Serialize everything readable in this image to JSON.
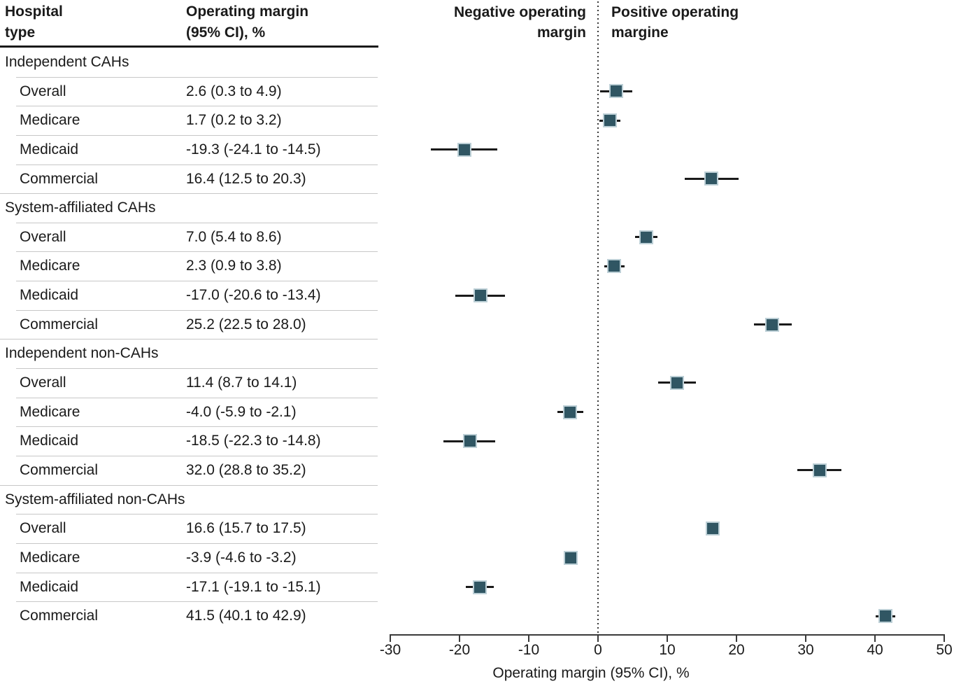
{
  "table": {
    "header": {
      "col1": "Hospital\ntype",
      "col2": "Operating margin\n(95% CI), %"
    },
    "groups": [
      {
        "label": "Independent CAHs",
        "rows": [
          {
            "label": "Overall",
            "value": "2.6 (0.3 to 4.9)"
          },
          {
            "label": "Medicare",
            "value": "1.7 (0.2 to 3.2)"
          },
          {
            "label": "Medicaid",
            "value": "-19.3 (-24.1 to -14.5)"
          },
          {
            "label": "Commercial",
            "value": "16.4 (12.5 to 20.3)"
          }
        ]
      },
      {
        "label": "System-affiliated CAHs",
        "rows": [
          {
            "label": "Overall",
            "value": "7.0 (5.4 to 8.6)"
          },
          {
            "label": "Medicare",
            "value": "2.3 (0.9 to 3.8)"
          },
          {
            "label": "Medicaid",
            "value": "-17.0 (-20.6 to -13.4)"
          },
          {
            "label": "Commercial",
            "value": "25.2 (22.5 to 28.0)"
          }
        ]
      },
      {
        "label": "Independent non-CAHs",
        "rows": [
          {
            "label": "Overall",
            "value": "11.4 (8.7 to 14.1)"
          },
          {
            "label": "Medicare",
            "value": "-4.0 (-5.9 to -2.1)"
          },
          {
            "label": "Medicaid",
            "value": "-18.5 (-22.3 to -14.8)"
          },
          {
            "label": "Commercial",
            "value": "32.0 (28.8 to 35.2)"
          }
        ]
      },
      {
        "label": "System-affiliated non-CAHs",
        "rows": [
          {
            "label": "Overall",
            "value": "16.6 (15.7 to 17.5)"
          },
          {
            "label": "Medicare",
            "value": "-3.9 (-4.6 to -3.2)"
          },
          {
            "label": "Medicaid",
            "value": "-17.1 (-19.1 to -15.1)"
          },
          {
            "label": "Commercial",
            "value": "41.5 (40.1 to 42.9)"
          }
        ]
      }
    ]
  },
  "chart_data": {
    "type": "scatter",
    "subtype": "forest-plot",
    "title": "",
    "xlabel": "Operating margin (95% CI), %",
    "ylabel": "",
    "xlim": [
      -30,
      50
    ],
    "xticks": [
      -30,
      -20,
      -10,
      0,
      10,
      20,
      30,
      40,
      50
    ],
    "xtick_labels": [
      "-30",
      "-20",
      "-10",
      "0",
      "10",
      "20",
      "30",
      "40",
      "50"
    ],
    "reference_line_x": 0,
    "reference_line_style": "dotted",
    "grid": false,
    "region_label_negative": "Negative operating margin",
    "region_label_positive": "Positive operating margine",
    "marker_shape": "square",
    "marker_fill": "#305663",
    "marker_border": "#bccfd6",
    "ci_line_color": "#1a1a1a",
    "points": [
      {
        "group": "Independent CAHs",
        "label": "Overall",
        "value": 2.6,
        "ci_low": 0.3,
        "ci_high": 4.9
      },
      {
        "group": "Independent CAHs",
        "label": "Medicare",
        "value": 1.7,
        "ci_low": 0.2,
        "ci_high": 3.2
      },
      {
        "group": "Independent CAHs",
        "label": "Medicaid",
        "value": -19.3,
        "ci_low": -24.1,
        "ci_high": -14.5
      },
      {
        "group": "Independent CAHs",
        "label": "Commercial",
        "value": 16.4,
        "ci_low": 12.5,
        "ci_high": 20.3
      },
      {
        "group": "System-affiliated CAHs",
        "label": "Overall",
        "value": 7.0,
        "ci_low": 5.4,
        "ci_high": 8.6
      },
      {
        "group": "System-affiliated CAHs",
        "label": "Medicare",
        "value": 2.3,
        "ci_low": 0.9,
        "ci_high": 3.8
      },
      {
        "group": "System-affiliated CAHs",
        "label": "Medicaid",
        "value": -17.0,
        "ci_low": -20.6,
        "ci_high": -13.4
      },
      {
        "group": "System-affiliated CAHs",
        "label": "Commercial",
        "value": 25.2,
        "ci_low": 22.5,
        "ci_high": 28.0
      },
      {
        "group": "Independent non-CAHs",
        "label": "Overall",
        "value": 11.4,
        "ci_low": 8.7,
        "ci_high": 14.1
      },
      {
        "group": "Independent non-CAHs",
        "label": "Medicare",
        "value": -4.0,
        "ci_low": -5.9,
        "ci_high": -2.1
      },
      {
        "group": "Independent non-CAHs",
        "label": "Medicaid",
        "value": -18.5,
        "ci_low": -22.3,
        "ci_high": -14.8
      },
      {
        "group": "Independent non-CAHs",
        "label": "Commercial",
        "value": 32.0,
        "ci_low": 28.8,
        "ci_high": 35.2
      },
      {
        "group": "System-affiliated non-CAHs",
        "label": "Overall",
        "value": 16.6,
        "ci_low": 15.7,
        "ci_high": 17.5
      },
      {
        "group": "System-affiliated non-CAHs",
        "label": "Medicare",
        "value": -3.9,
        "ci_low": -4.6,
        "ci_high": -3.2
      },
      {
        "group": "System-affiliated non-CAHs",
        "label": "Medicaid",
        "value": -17.1,
        "ci_low": -19.1,
        "ci_high": -15.1
      },
      {
        "group": "System-affiliated non-CAHs",
        "label": "Commercial",
        "value": 41.5,
        "ci_low": 40.1,
        "ci_high": 42.9
      }
    ]
  }
}
